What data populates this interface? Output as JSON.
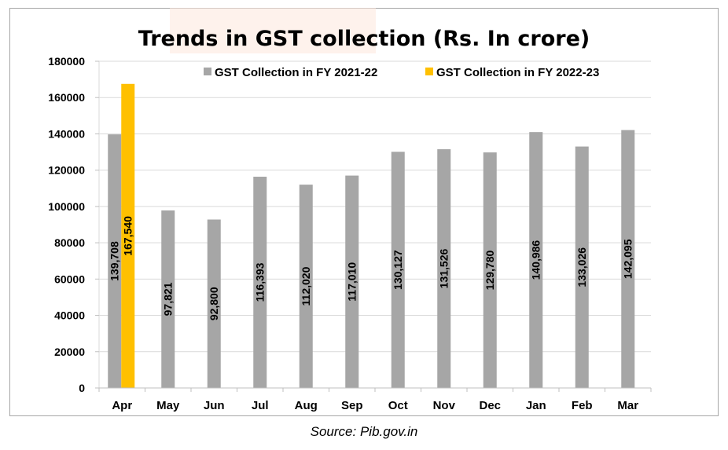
{
  "source": "Source: Pib.gov.in",
  "chart_data": {
    "type": "bar",
    "title": "Trends in GST collection (Rs. In crore)",
    "categories": [
      "Apr",
      "May",
      "Jun",
      "Jul",
      "Aug",
      "Sep",
      "Oct",
      "Nov",
      "Dec",
      "Jan",
      "Feb",
      "Mar"
    ],
    "series": [
      {
        "name": "GST Collection in FY 2021-22",
        "color": "#a6a6a6",
        "values": [
          139708,
          97821,
          92800,
          116393,
          112020,
          117010,
          130127,
          131526,
          129780,
          140986,
          133026,
          142095
        ],
        "labels": [
          "139,708",
          "97,821",
          "92,800",
          "116,393",
          "112,020",
          "117,010",
          "130,127",
          "131,526",
          "129,780",
          "140,986",
          "133,026",
          "142,095"
        ]
      },
      {
        "name": "GST Collection in FY 2022-23",
        "color": "#ffc000",
        "values": [
          167540,
          null,
          null,
          null,
          null,
          null,
          null,
          null,
          null,
          null,
          null,
          null
        ],
        "labels": [
          "167,540",
          null,
          null,
          null,
          null,
          null,
          null,
          null,
          null,
          null,
          null,
          null
        ]
      }
    ],
    "xlabel": "",
    "ylabel": "",
    "ylim": [
      0,
      180000
    ],
    "yticks": [
      "0",
      "20000",
      "40000",
      "60000",
      "80000",
      "100000",
      "120000",
      "140000",
      "160000",
      "180000"
    ],
    "grid": true,
    "legend": "top"
  }
}
